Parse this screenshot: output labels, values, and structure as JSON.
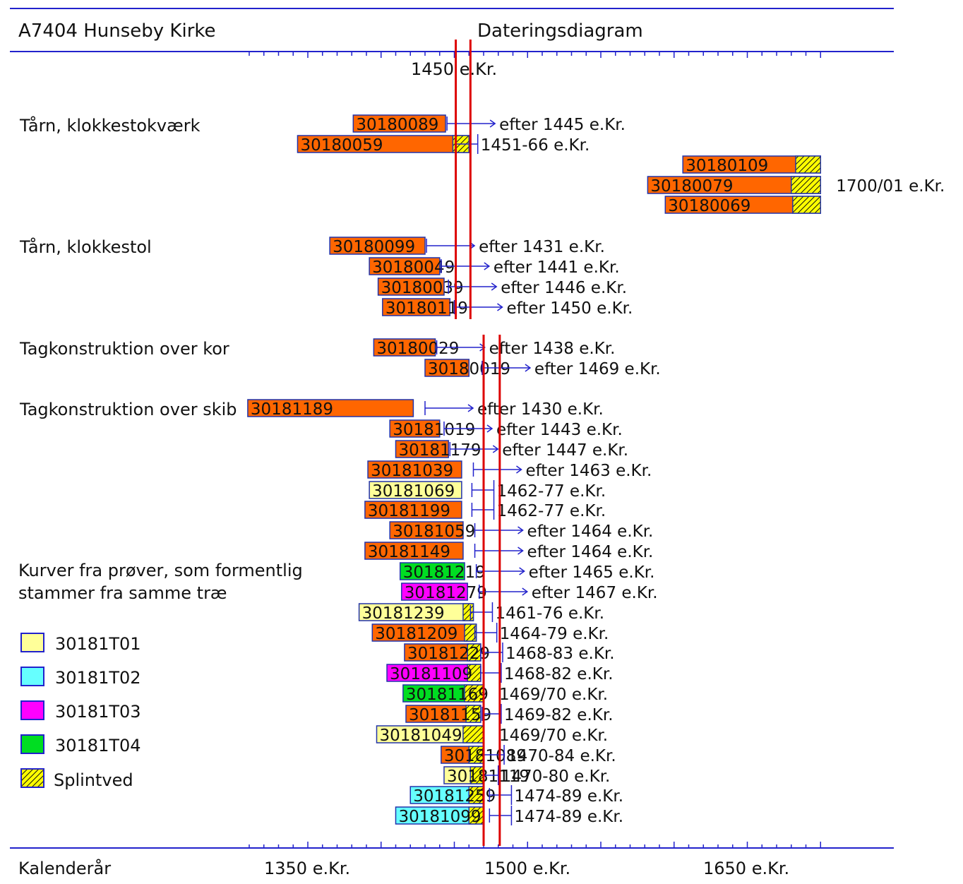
{
  "header": {
    "site_title": "A7404 Hunseby Kirke",
    "diagram_title": "Dateringsdiagram"
  },
  "axis": {
    "label": "Kalenderår",
    "ticks": [
      {
        "year": 1350,
        "label": "1350 e.Kr."
      },
      {
        "year": 1500,
        "label": "1500 e.Kr."
      },
      {
        "year": 1650,
        "label": "1650 e.Kr."
      }
    ],
    "top_tick": {
      "year": 1450,
      "label": "1450 e.Kr."
    }
  },
  "legend": {
    "note_line1": "Kurver fra prøver, som formentlig",
    "note_line2": "stammer fra samme træ",
    "items": [
      {
        "label": "30181T01",
        "color": "#FFFF99",
        "hatch": false
      },
      {
        "label": "30181T02",
        "color": "#66FFFF",
        "hatch": false
      },
      {
        "label": "30181T03",
        "color": "#FF00FF",
        "hatch": false
      },
      {
        "label": "30181T04",
        "color": "#00DD22",
        "hatch": false
      },
      {
        "label": "Splintved",
        "color": "#FFFF00",
        "hatch": true
      }
    ]
  },
  "colors": {
    "orange": "#FF6600",
    "T01": "#FFFF99",
    "T02": "#66FFFF",
    "T03": "#FF00FF",
    "T04": "#00DD22",
    "sapwood": "#FFFF00",
    "axis": "#2222CC",
    "red_line": "#DD0000"
  },
  "chart_data": {
    "type": "dating-diagram",
    "x_unit": "calendar year AD",
    "xlim": [
      1306,
      1706
    ],
    "red_lines": [
      {
        "group": "Tårn",
        "years": [
          1451,
          1461
        ]
      },
      {
        "group": "Tagkonstruktion",
        "years": [
          1470,
          1481
        ]
      }
    ],
    "groups": [
      {
        "name": "Tårn, klokkestokværk",
        "samples": [
          {
            "id": "30180089",
            "start": 1381,
            "end": 1444,
            "sap_start": null,
            "color": "orange",
            "dating": "efter 1445 e.Kr.",
            "bracket": "after",
            "bracket_year": 1445
          },
          {
            "id": "30180059",
            "start": 1343,
            "end": 1460,
            "sap_start": 1449,
            "color": "orange",
            "dating": "1451-66 e.Kr.",
            "bracket": "range",
            "bracket_year": 1451,
            "bracket_end": 1466
          },
          {
            "id": "30180109",
            "start": 1606,
            "end": 1700,
            "sap_start": 1683,
            "color": "orange",
            "dating": "",
            "bracket": null
          },
          {
            "id": "30180079",
            "start": 1582,
            "end": 1700,
            "sap_start": 1680,
            "color": "orange",
            "dating": "1700/01 e.Kr.",
            "bracket": null
          },
          {
            "id": "30180069",
            "start": 1594,
            "end": 1700,
            "sap_start": 1681,
            "color": "orange",
            "dating": "",
            "bracket": null
          }
        ]
      },
      {
        "name": "Tårn, klokkestol",
        "samples": [
          {
            "id": "30180099",
            "start": 1365,
            "end": 1430,
            "sap_start": null,
            "color": "orange",
            "dating": "efter 1431 e.Kr.",
            "bracket": "after",
            "bracket_year": 1431
          },
          {
            "id": "30180049",
            "start": 1392,
            "end": 1440,
            "sap_start": null,
            "color": "orange",
            "dating": "efter 1441 e.Kr.",
            "bracket": "after",
            "bracket_year": 1441
          },
          {
            "id": "30180039",
            "start": 1398,
            "end": 1443,
            "sap_start": null,
            "color": "orange",
            "dating": "efter 1446 e.Kr.",
            "bracket": "after",
            "bracket_year": 1446
          },
          {
            "id": "30180119",
            "start": 1401,
            "end": 1447,
            "sap_start": null,
            "color": "orange",
            "dating": "efter 1450 e.Kr.",
            "bracket": "after",
            "bracket_year": 1450
          }
        ]
      },
      {
        "name": "Tagkonstruktion over kor",
        "samples": [
          {
            "id": "30180029",
            "start": 1395,
            "end": 1437,
            "sap_start": null,
            "color": "orange",
            "dating": "efter 1438 e.Kr.",
            "bracket": "after",
            "bracket_year": 1438
          },
          {
            "id": "30180019",
            "start": 1430,
            "end": 1460,
            "sap_start": null,
            "color": "orange",
            "dating": "efter 1469 e.Kr.",
            "bracket": "after",
            "bracket_year": 1469
          }
        ]
      },
      {
        "name": "Tagkonstruktion over skib",
        "samples": [
          {
            "id": "30181189",
            "start": 1309,
            "end": 1422,
            "sap_start": null,
            "color": "orange",
            "dating": "efter 1430 e.Kr.",
            "bracket": "after",
            "bracket_year": 1430
          },
          {
            "id": "30181019",
            "start": 1406,
            "end": 1440,
            "sap_start": null,
            "color": "orange",
            "dating": "efter 1443 e.Kr.",
            "bracket": "after",
            "bracket_year": 1443
          },
          {
            "id": "30181179",
            "start": 1410,
            "end": 1446,
            "sap_start": null,
            "color": "orange",
            "dating": "efter 1447 e.Kr.",
            "bracket": "after",
            "bracket_year": 1447
          },
          {
            "id": "30181039",
            "start": 1391,
            "end": 1455,
            "sap_start": null,
            "color": "orange",
            "dating": "efter 1463 e.Kr.",
            "bracket": "after",
            "bracket_year": 1463
          },
          {
            "id": "30181069",
            "start": 1392,
            "end": 1455,
            "sap_start": null,
            "color": "T01",
            "dating": "1462-77 e.Kr.",
            "bracket": "range",
            "bracket_year": 1462,
            "bracket_end": 1477
          },
          {
            "id": "30181199",
            "start": 1389,
            "end": 1455,
            "sap_start": null,
            "color": "orange",
            "dating": "1462-77 e.Kr.",
            "bracket": "range",
            "bracket_year": 1462,
            "bracket_end": 1477
          },
          {
            "id": "30181059",
            "start": 1406,
            "end": 1456,
            "sap_start": null,
            "color": "orange",
            "dating": "efter 1464 e.Kr.",
            "bracket": "after",
            "bracket_year": 1464
          },
          {
            "id": "30181149",
            "start": 1389,
            "end": 1456,
            "sap_start": null,
            "color": "orange",
            "dating": "efter 1464 e.Kr.",
            "bracket": "after",
            "bracket_year": 1464
          },
          {
            "id": "30181219",
            "start": 1413,
            "end": 1457,
            "sap_start": null,
            "color": "T04",
            "dating": "efter 1465 e.Kr.",
            "bracket": "after",
            "bracket_year": 1465
          },
          {
            "id": "30181279",
            "start": 1414,
            "end": 1459,
            "sap_start": null,
            "color": "T03",
            "dating": "efter 1467 e.Kr.",
            "bracket": "after",
            "bracket_year": 1467
          },
          {
            "id": "30181239",
            "start": 1385,
            "end": 1463,
            "sap_start": 1456,
            "color": "T01",
            "dating": "1461-76 e.Kr.",
            "bracket": "range",
            "bracket_year": 1461,
            "bracket_end": 1476
          },
          {
            "id": "30181209",
            "start": 1394,
            "end": 1465,
            "sap_start": 1457,
            "color": "orange",
            "dating": "1464-79 e.Kr.",
            "bracket": "range",
            "bracket_year": 1464,
            "bracket_end": 1479
          },
          {
            "id": "30181229",
            "start": 1416,
            "end": 1468,
            "sap_start": 1459,
            "color": "orange",
            "dating": "1468-83 e.Kr.",
            "bracket": "range",
            "bracket_year": 1468,
            "bracket_end": 1483
          },
          {
            "id": "30181109",
            "start": 1404,
            "end": 1468,
            "sap_start": 1459,
            "color": "T03",
            "dating": "1468-82 e.Kr.",
            "bracket": "range",
            "bracket_year": 1468,
            "bracket_end": 1482
          },
          {
            "id": "30181169",
            "start": 1415,
            "end": 1470,
            "sap_start": 1457,
            "color": "T04",
            "dating": "1469/70 e.Kr.",
            "bracket": null
          },
          {
            "id": "30181159",
            "start": 1417,
            "end": 1468,
            "sap_start": 1458,
            "color": "orange",
            "dating": "1469-82 e.Kr.",
            "bracket": "range",
            "bracket_year": 1469,
            "bracket_end": 1482
          },
          {
            "id": "30181049",
            "start": 1397,
            "end": 1470,
            "sap_start": 1456,
            "color": "T01",
            "dating": "1469/70 e.Kr.",
            "bracket": null
          },
          {
            "id": "30181089",
            "start": 1441,
            "end": 1470,
            "sap_start": 1460,
            "color": "orange",
            "dating": "1470-84 e.Kr.",
            "bracket": "range",
            "bracket_year": 1470,
            "bracket_end": 1484
          },
          {
            "id": "30181119",
            "start": 1443,
            "end": 1470,
            "sap_start": 1461,
            "color": "T01",
            "dating": "1470-80 e.Kr.",
            "bracket": "range",
            "bracket_year": 1470,
            "bracket_end": 1480
          },
          {
            "id": "30181259",
            "start": 1420,
            "end": 1470,
            "sap_start": 1460,
            "color": "T02",
            "dating": "1474-89 e.Kr.",
            "bracket": "range",
            "bracket_year": 1474,
            "bracket_end": 1489
          },
          {
            "id": "30181099",
            "start": 1410,
            "end": 1470,
            "sap_start": 1460,
            "color": "T02",
            "dating": "1474-89 e.Kr.",
            "bracket": "range",
            "bracket_year": 1474,
            "bracket_end": 1489
          }
        ]
      }
    ]
  }
}
